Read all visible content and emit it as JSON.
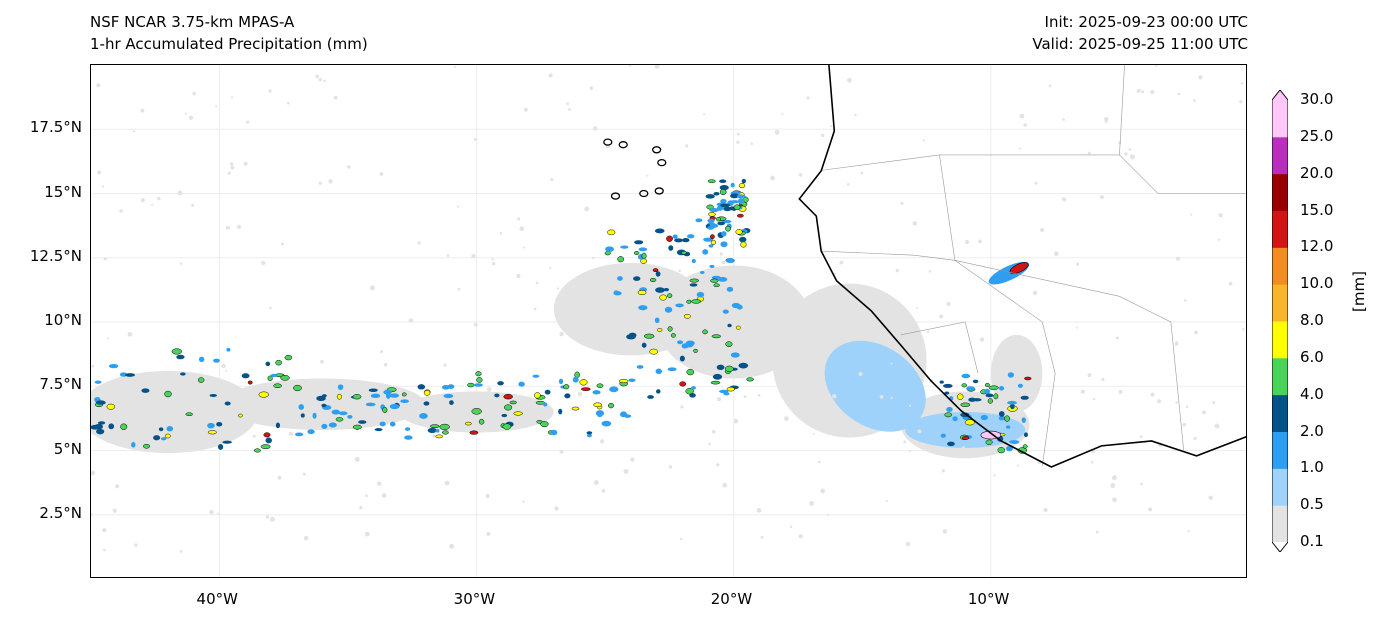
{
  "header": {
    "title": "NSF NCAR 3.75-km MPAS-A",
    "subtitle": "1-hr Accumulated Precipitation (mm)",
    "init": "Init: 2025-09-23 00:00 UTC",
    "valid": "Valid: 2025-09-25 11:00 UTC"
  },
  "map": {
    "extent": {
      "lon": [
        -45,
        0
      ],
      "lat": [
        0,
        20
      ]
    },
    "lon_ticks": [
      {
        "v": -40,
        "label": "40°W"
      },
      {
        "v": -30,
        "label": "30°W"
      },
      {
        "v": -20,
        "label": "20°W"
      },
      {
        "v": -10,
        "label": "10°W"
      }
    ],
    "lat_ticks": [
      {
        "v": 17.5,
        "label": "17.5°N"
      },
      {
        "v": 15,
        "label": "15°N"
      },
      {
        "v": 12.5,
        "label": "12.5°N"
      },
      {
        "v": 10,
        "label": "10°N"
      },
      {
        "v": 7.5,
        "label": "7.5°N"
      },
      {
        "v": 5,
        "label": "5°N"
      },
      {
        "v": 2.5,
        "label": "2.5°N"
      }
    ],
    "coastline": [
      [
        -16.3,
        20
      ],
      [
        -16.28,
        19.77
      ],
      [
        -16.09,
        17.43
      ],
      [
        -16.6,
        15.88
      ],
      [
        -17.45,
        14.79
      ],
      [
        -16.79,
        14.12
      ],
      [
        -16.6,
        12.76
      ],
      [
        -16.0,
        11.6
      ],
      [
        -14.65,
        10.43
      ],
      [
        -13.48,
        9.07
      ],
      [
        -12.32,
        7.7
      ],
      [
        -11.15,
        6.54
      ],
      [
        -9.6,
        5.37
      ],
      [
        -7.65,
        4.36
      ],
      [
        -5.7,
        5.18
      ],
      [
        -3.75,
        5.37
      ],
      [
        -2.0,
        4.79
      ],
      [
        0,
        5.56
      ]
    ]
  },
  "colorbar": {
    "label": "[mm]",
    "levels": [
      "0.1",
      "0.5",
      "1.0",
      "2.0",
      "4.0",
      "6.0",
      "8.0",
      "10.0",
      "12.0",
      "15.0",
      "20.0",
      "25.0",
      "30.0"
    ],
    "colors": [
      "#e3e3e3",
      "#9fd2fa",
      "#2e9ef0",
      "#045287",
      "#49d35a",
      "#ffff00",
      "#f9b52c",
      "#f28d22",
      "#d21414",
      "#990000",
      "#b92ebc",
      "#ffc8f8"
    ]
  }
}
